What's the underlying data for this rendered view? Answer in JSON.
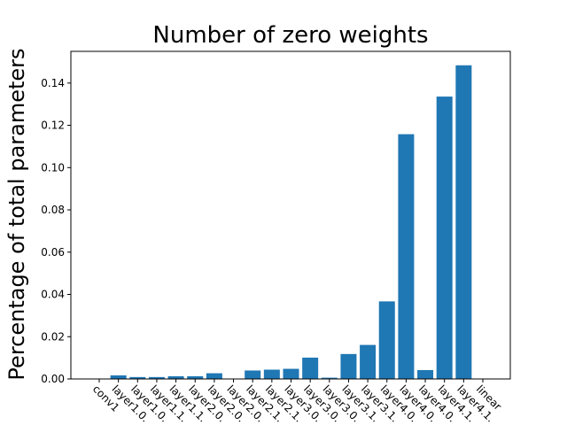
{
  "chart_data": {
    "type": "bar",
    "title": "Number of zero weights",
    "xlabel": "",
    "ylabel": "Percentage of total parameters",
    "categories": [
      "conv1",
      "layer1.0.",
      "layer1.0.",
      "layer1.1.",
      "layer1.1.",
      "layer2.0.",
      "layer2.0.",
      "layer2.0.",
      "layer2.1.",
      "layer2.1.",
      "layer3.0.",
      "layer3.0.",
      "layer3.0.",
      "layer3.1.",
      "layer3.1.",
      "layer4.0.",
      "layer4.0.",
      "layer4.0.",
      "layer4.1.",
      "layer4.1.",
      "linear"
    ],
    "values": [
      0.0,
      0.0017,
      0.0009,
      0.0009,
      0.0013,
      0.0013,
      0.0027,
      0.0,
      0.004,
      0.0044,
      0.0048,
      0.0101,
      0.0006,
      0.0118,
      0.0161,
      0.0367,
      0.1158,
      0.0042,
      0.1336,
      0.1484,
      0.0
    ],
    "ylim": [
      0,
      0.155
    ],
    "yticks": [
      "0.00",
      "0.02",
      "0.04",
      "0.06",
      "0.08",
      "0.10",
      "0.12",
      "0.14"
    ],
    "bar_color": "#1f77b4",
    "grid": false,
    "legend": "none"
  }
}
